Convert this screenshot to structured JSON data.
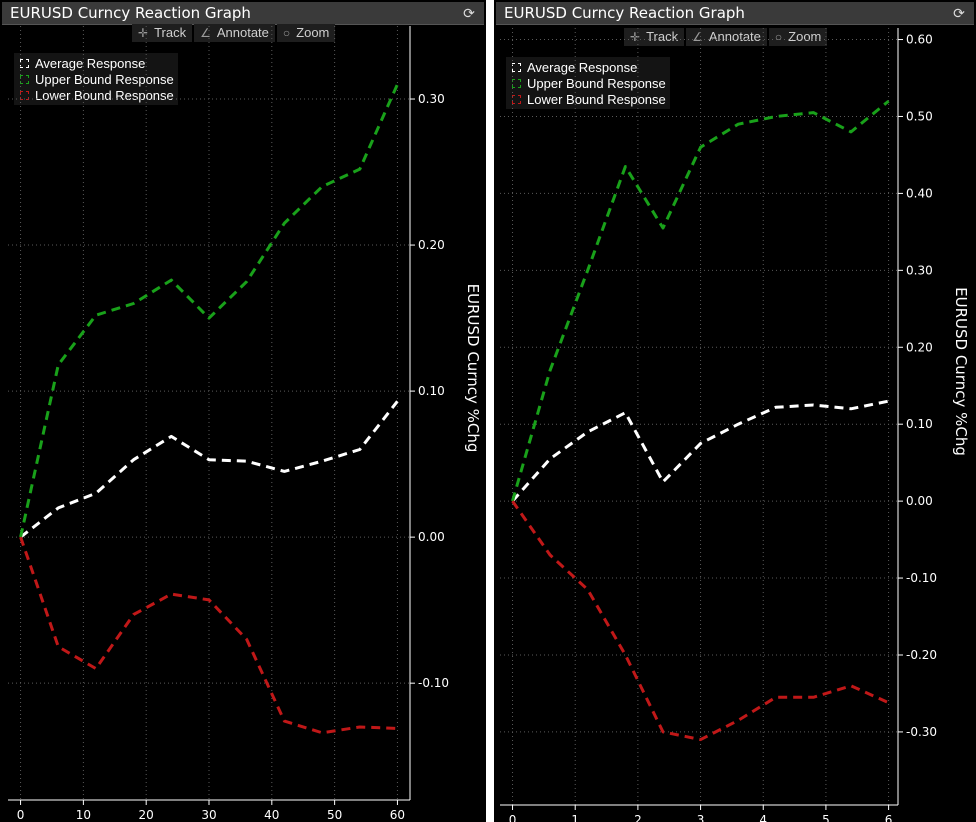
{
  "colors": {
    "average": "#ffffff",
    "upper": "#19a11a",
    "lower": "#c01818",
    "grid": "#5a5a5a",
    "axis": "#ffffff"
  },
  "toolbar": {
    "track_label": "Track",
    "annotate_label": "Annotate",
    "zoom_label": "Zoom",
    "track_icon": "crosshair-icon",
    "annotate_icon": "pencil-icon",
    "zoom_icon": "magnifier-icon"
  },
  "chart_data": [
    {
      "type": "line",
      "title": "EURUSD Curncy Reaction Graph",
      "ylabel": "EURUSD Curncy %Chg",
      "xlabel": "",
      "xlim": [
        -2,
        62
      ],
      "ylim": [
        -0.18,
        0.35
      ],
      "x_ticks": [
        0,
        10,
        20,
        30,
        40,
        50,
        60
      ],
      "y_ticks": [
        -0.1,
        0.0,
        0.1,
        0.2,
        0.3
      ],
      "y_tick_labels": [
        "-0.10",
        "0.00",
        "0.10",
        "0.20",
        "0.30"
      ],
      "grid": true,
      "legend_position": "top-left",
      "series": [
        {
          "name": "Average Response",
          "color": "#ffffff",
          "x": [
            0,
            6,
            12,
            18,
            24,
            30,
            36,
            42,
            48,
            54,
            60
          ],
          "values": [
            0.0,
            0.02,
            0.03,
            0.053,
            0.069,
            0.053,
            0.052,
            0.045,
            0.052,
            0.06,
            0.093
          ]
        },
        {
          "name": "Upper Bound Response",
          "color": "#19a11a",
          "x": [
            0,
            6,
            12,
            18,
            24,
            30,
            36,
            42,
            48,
            54,
            60
          ],
          "values": [
            0.0,
            0.118,
            0.152,
            0.16,
            0.176,
            0.15,
            0.175,
            0.215,
            0.24,
            0.252,
            0.31
          ]
        },
        {
          "name": "Lower Bound Response",
          "color": "#c01818",
          "x": [
            0,
            6,
            12,
            18,
            24,
            30,
            36,
            42,
            48,
            54,
            60
          ],
          "values": [
            0.0,
            -0.075,
            -0.09,
            -0.053,
            -0.039,
            -0.043,
            -0.07,
            -0.126,
            -0.134,
            -0.13,
            -0.131
          ]
        }
      ]
    },
    {
      "type": "line",
      "title": "EURUSD Curncy Reaction Graph",
      "ylabel": "EURUSD Curncy %Chg",
      "xlabel": "",
      "xlim": [
        -0.2,
        6.15
      ],
      "ylim": [
        -0.395,
        0.615
      ],
      "x_ticks": [
        0,
        1,
        2,
        3,
        4,
        5,
        6
      ],
      "y_ticks": [
        -0.3,
        -0.2,
        -0.1,
        0.0,
        0.1,
        0.2,
        0.3,
        0.4,
        0.5,
        0.6
      ],
      "y_tick_labels": [
        "-0.30",
        "-0.20",
        "-0.10",
        "0.00",
        "0.10",
        "0.20",
        "0.30",
        "0.40",
        "0.50",
        "0.60"
      ],
      "grid": true,
      "legend_position": "top-left",
      "series": [
        {
          "name": "Average Response",
          "color": "#ffffff",
          "x": [
            0,
            0.6,
            1.2,
            1.8,
            2.4,
            3.0,
            3.6,
            4.2,
            4.8,
            5.4,
            6.0
          ],
          "values": [
            0.0,
            0.055,
            0.09,
            0.115,
            0.025,
            0.075,
            0.1,
            0.122,
            0.125,
            0.12,
            0.13
          ]
        },
        {
          "name": "Upper Bound Response",
          "color": "#19a11a",
          "x": [
            0,
            0.6,
            1.2,
            1.8,
            2.4,
            3.0,
            3.6,
            4.2,
            4.8,
            5.4,
            6.0
          ],
          "values": [
            0.0,
            0.17,
            0.3,
            0.435,
            0.355,
            0.46,
            0.49,
            0.5,
            0.505,
            0.48,
            0.52
          ]
        },
        {
          "name": "Lower Bound Response",
          "color": "#c01818",
          "x": [
            0,
            0.6,
            1.2,
            1.8,
            2.4,
            3.0,
            3.6,
            4.2,
            4.8,
            5.4,
            6.0
          ],
          "values": [
            0.0,
            -0.07,
            -0.115,
            -0.2,
            -0.3,
            -0.31,
            -0.285,
            -0.255,
            -0.255,
            -0.24,
            -0.262
          ]
        }
      ]
    }
  ]
}
